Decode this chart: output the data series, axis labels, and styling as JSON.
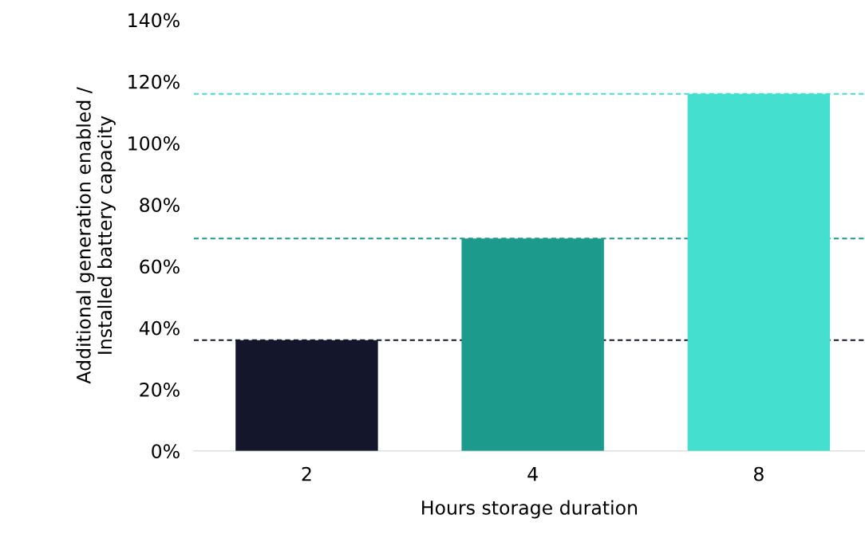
{
  "chart_data": {
    "type": "bar",
    "categories": [
      "2",
      "4",
      "8"
    ],
    "values": [
      36,
      69,
      116
    ],
    "colors": [
      "#14162b",
      "#1c9a8c",
      "#45dfd0"
    ],
    "xlabel": "Hours storage duration",
    "ylabel": "Additional generation enabled /\nInstalled battery capacity",
    "ylim": [
      0,
      140
    ],
    "yticks": [
      {
        "value": 0,
        "label": "0%"
      },
      {
        "value": 20,
        "label": "20%"
      },
      {
        "value": 40,
        "label": "40%"
      },
      {
        "value": 60,
        "label": "60%"
      },
      {
        "value": 80,
        "label": "80%"
      },
      {
        "value": 100,
        "label": "100%"
      },
      {
        "value": 120,
        "label": "120%"
      },
      {
        "value": 140,
        "label": "140%"
      }
    ],
    "ref_lines": [
      {
        "axis": "y",
        "value": 36,
        "color": "#14162b",
        "line_style": "dashed"
      },
      {
        "axis": "y",
        "value": 69,
        "color": "#1c9a8c",
        "line_style": "dashed"
      },
      {
        "axis": "y",
        "value": 116,
        "color": "#45dfd0",
        "line_style": "dashed"
      }
    ],
    "grid": false,
    "legend": false
  }
}
